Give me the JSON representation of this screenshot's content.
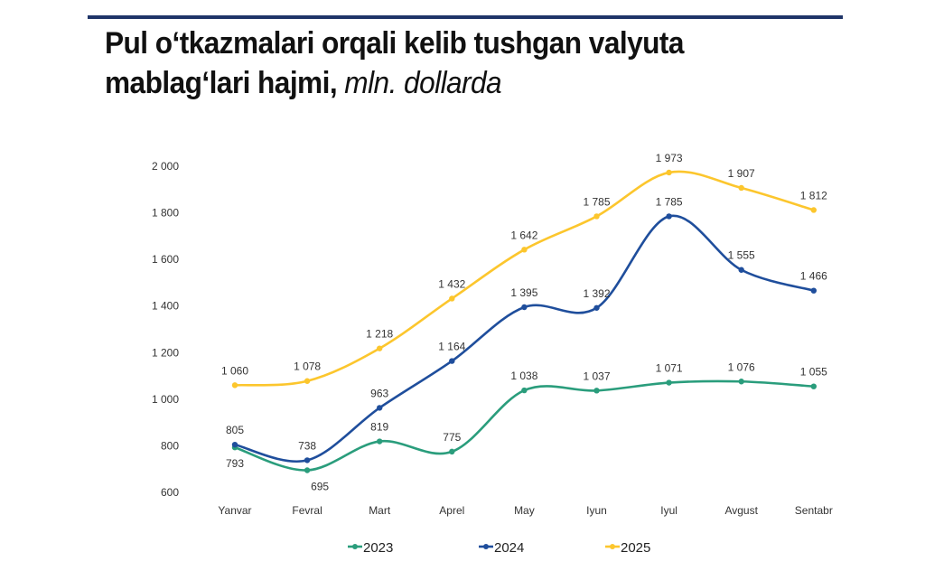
{
  "title": {
    "line1": "Pul o‘tkazmalari orqali kelib tushgan valyuta",
    "line2_bold": "mablag‘lari hajmi,",
    "line2_italic": "mln. dollarda"
  },
  "chart_data": {
    "type": "line",
    "categories": [
      "Yanvar",
      "Fevral",
      "Mart",
      "Aprel",
      "May",
      "Iyun",
      "Iyul",
      "Avgust",
      "Sentabr"
    ],
    "ylim": [
      600,
      2000
    ],
    "yticks": [
      600,
      800,
      1000,
      1200,
      1400,
      1600,
      1800,
      2000
    ],
    "ytick_labels": [
      "600",
      "800",
      "1 000",
      "1 200",
      "1 400",
      "1 600",
      "1 800",
      "2 000"
    ],
    "grid": false,
    "legend": "bottom",
    "series": [
      {
        "name": "2023",
        "color": "#2a9d7c",
        "values": [
          793,
          695,
          819,
          775,
          1038,
          1037,
          1071,
          1076,
          1055
        ],
        "labels": [
          "793",
          "695",
          "819",
          "775",
          "1 038",
          "1 037",
          "1 071",
          "1 076",
          "1 055"
        ]
      },
      {
        "name": "2024",
        "color": "#1f4e9c",
        "values": [
          805,
          738,
          963,
          1164,
          1395,
          1392,
          1785,
          1555,
          1466
        ],
        "labels": [
          "805",
          "738",
          "963",
          "1 164",
          "1 395",
          "1 392",
          "1 785",
          "1 555",
          "1 466"
        ]
      },
      {
        "name": "2025",
        "color": "#fcc62d",
        "values": [
          1060,
          1078,
          1218,
          1432,
          1642,
          1785,
          1973,
          1907,
          1812
        ],
        "labels": [
          "1 060",
          "1 078",
          "1 218",
          "1 432",
          "1 642",
          "1 785",
          "1 973",
          "1 907",
          "1 812"
        ]
      }
    ]
  }
}
